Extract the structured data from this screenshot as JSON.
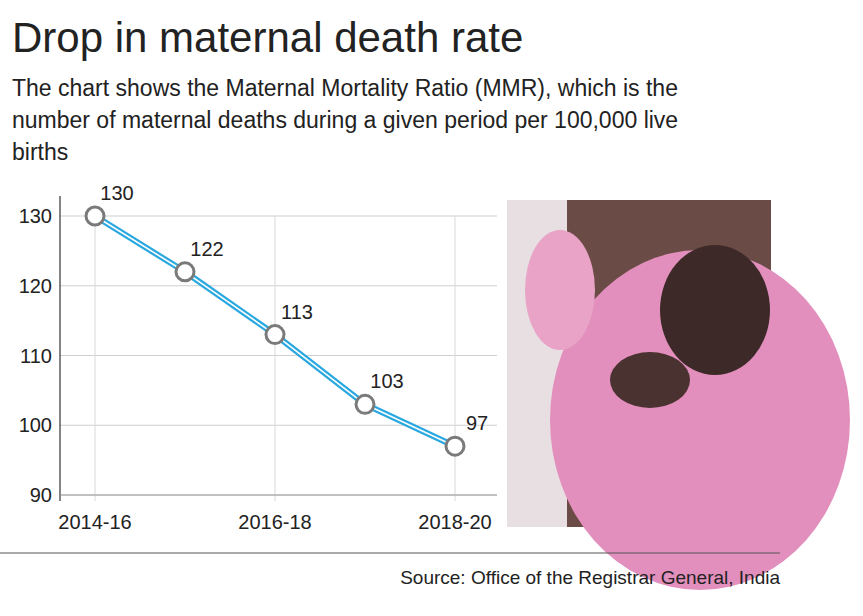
{
  "chart_data": {
    "type": "line",
    "title": "Drop in maternal death rate",
    "subtitle": "The chart shows the Maternal Mortality Ratio (MMR), which is the number of maternal deaths during a given period per 100,000 live births",
    "source": "Source: Office of the Registrar General, India",
    "categories": [
      "2014-16",
      null,
      "2016-18",
      null,
      "2018-20"
    ],
    "values": [
      130,
      122,
      113,
      103,
      97
    ],
    "color": "#29a8e0",
    "marker": "circle",
    "ylim": [
      90,
      130
    ],
    "yticks": [
      90,
      100,
      110,
      120,
      130
    ],
    "grid": true,
    "data_labels": true
  }
}
